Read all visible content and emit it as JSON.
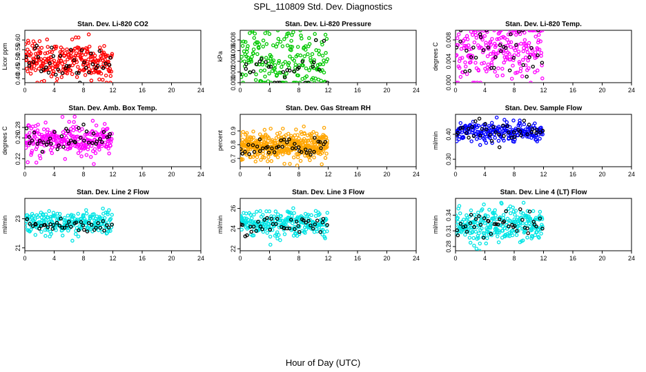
{
  "main_title": "SPL_110809  Std. Dev. Diagnostics",
  "xlabel": "Hour of Day (UTC)",
  "chart_data": [
    {
      "type": "scatter",
      "title": "Stan. Dev. Li-820 CO2",
      "ylabel": "Licor ppm",
      "color": "#ff0000",
      "xlim": [
        0,
        24
      ],
      "xticks": [
        0,
        4,
        8,
        12,
        16,
        20,
        24
      ],
      "ylim": [
        0.38,
        0.65
      ],
      "yticks": [
        "0.40",
        "0.45",
        "0.50",
        "0.55",
        "0.60"
      ],
      "data_x_range": [
        0,
        11.9
      ],
      "series": [
        {
          "name": "points",
          "color": "#ff0000",
          "n": 260,
          "mean": 0.49,
          "sd": 0.05
        },
        {
          "name": "hourly",
          "color": "#000000",
          "n": 40,
          "mean": 0.48,
          "sd": 0.04
        }
      ]
    },
    {
      "type": "scatter",
      "title": "Stan. Dev. Li-820 Pressure",
      "ylabel": "kPa",
      "color": "#00c800",
      "xlim": [
        0,
        24
      ],
      "xticks": [
        0,
        4,
        8,
        12,
        16,
        20,
        24
      ],
      "ylim": [
        0,
        0.0098
      ],
      "yticks": [
        "0.000",
        "0.002",
        "0.004",
        "0.006",
        "0.008"
      ],
      "data_x_range": [
        0,
        11.9
      ],
      "series": [
        {
          "name": "points",
          "color": "#00c800",
          "n": 200,
          "mean": 0.004,
          "sd": 0.003
        },
        {
          "name": "hourly",
          "color": "#000000",
          "n": 30,
          "mean": 0.003,
          "sd": 0.002
        }
      ]
    },
    {
      "type": "scatter",
      "title": "Stan. Dev. Li-820 Temp.",
      "ylabel": "degrees C",
      "color": "#ff00ff",
      "xlim": [
        0,
        24
      ],
      "xticks": [
        0,
        4,
        8,
        12,
        16,
        20,
        24
      ],
      "ylim": [
        0,
        0.0098
      ],
      "yticks": [
        "0.000",
        "0.004",
        "0.008"
      ],
      "data_x_range": [
        0,
        11.9
      ],
      "series": [
        {
          "name": "points",
          "color": "#ff00ff",
          "n": 220,
          "mean": 0.006,
          "sd": 0.003
        },
        {
          "name": "hourly",
          "color": "#000000",
          "n": 35,
          "mean": 0.006,
          "sd": 0.003
        }
      ]
    },
    {
      "type": "scatter",
      "title": "Stan. Dev. Amb. Box Temp.",
      "ylabel": "degrees C",
      "color": "#ff00ff",
      "xlim": [
        0,
        24
      ],
      "xticks": [
        0,
        4,
        8,
        12,
        16,
        20,
        24
      ],
      "ylim": [
        0.205,
        0.305
      ],
      "yticks": [
        "0.22",
        "0.26",
        "0.28"
      ],
      "data_x_range": [
        0,
        11.9
      ],
      "series": [
        {
          "name": "points",
          "color": "#ff00ff",
          "n": 260,
          "mean": 0.255,
          "sd": 0.015
        },
        {
          "name": "hourly",
          "color": "#000000",
          "n": 40,
          "mean": 0.258,
          "sd": 0.012
        }
      ]
    },
    {
      "type": "scatter",
      "title": "Stan. Dev. Gas Stream RH",
      "ylabel": "percent",
      "color": "#ffa500",
      "xlim": [
        0,
        24
      ],
      "xticks": [
        0,
        4,
        8,
        12,
        16,
        20,
        24
      ],
      "ylim": [
        0.64,
        1.02
      ],
      "yticks": [
        "0.7",
        "0.8",
        "0.9"
      ],
      "data_x_range": [
        0,
        11.9
      ],
      "series": [
        {
          "name": "points",
          "color": "#ffa500",
          "n": 420,
          "mean": 0.79,
          "sd": 0.05
        },
        {
          "name": "hourly",
          "color": "#000000",
          "n": 40,
          "mean": 0.78,
          "sd": 0.04
        }
      ]
    },
    {
      "type": "scatter",
      "title": "Stan. Dev. Sample Flow",
      "ylabel": "ml/min",
      "color": "#0000ff",
      "xlim": [
        0,
        24
      ],
      "xticks": [
        0,
        4,
        8,
        12,
        16,
        20,
        24
      ],
      "ylim": [
        0.27,
        0.48
      ],
      "yticks": [
        "0.30",
        "0.40"
      ],
      "data_x_range": [
        0,
        11.9
      ],
      "series": [
        {
          "name": "points",
          "color": "#0000ff",
          "n": 220,
          "mean": 0.41,
          "sd": 0.02
        },
        {
          "name": "hourly",
          "color": "#000000",
          "n": 40,
          "mean": 0.41,
          "sd": 0.02
        }
      ]
    },
    {
      "type": "scatter",
      "title": "Stan. Dev. Line 2 Flow",
      "ylabel": "ml/min",
      "color": "#00e5e5",
      "xlim": [
        0,
        24
      ],
      "xticks": [
        0,
        4,
        8,
        12,
        16,
        20,
        24
      ],
      "ylim": [
        20.8,
        24.4
      ],
      "yticks": [
        "21",
        "23"
      ],
      "data_x_range": [
        0,
        11.9
      ],
      "series": [
        {
          "name": "points",
          "color": "#00e5e5",
          "n": 240,
          "mean": 22.7,
          "sd": 0.4
        },
        {
          "name": "hourly",
          "color": "#000000",
          "n": 40,
          "mean": 22.6,
          "sd": 0.25
        }
      ]
    },
    {
      "type": "scatter",
      "title": "Stan. Dev. Line 3 Flow",
      "ylabel": "ml/min",
      "color": "#00e5e5",
      "xlim": [
        0,
        24
      ],
      "xticks": [
        0,
        4,
        8,
        12,
        16,
        20,
        24
      ],
      "ylim": [
        21.8,
        27.0
      ],
      "yticks": [
        "22",
        "24",
        "26"
      ],
      "data_x_range": [
        0,
        11.9
      ],
      "series": [
        {
          "name": "points",
          "color": "#00e5e5",
          "n": 240,
          "mean": 24.5,
          "sd": 0.6
        },
        {
          "name": "hourly",
          "color": "#000000",
          "n": 40,
          "mean": 24.4,
          "sd": 0.4
        }
      ]
    },
    {
      "type": "scatter",
      "title": "Stan. Dev. Line 4 (LT) Flow",
      "ylabel": "ml/min",
      "color": "#00e5e5",
      "xlim": [
        0,
        24
      ],
      "xticks": [
        0,
        4,
        8,
        12,
        16,
        20,
        24
      ],
      "ylim": [
        0.272,
        0.372
      ],
      "yticks": [
        "0.28",
        "0.31",
        "0.34"
      ],
      "data_x_range": [
        0,
        11.9
      ],
      "series": [
        {
          "name": "points",
          "color": "#00e5e5",
          "n": 260,
          "mean": 0.322,
          "sd": 0.018
        },
        {
          "name": "hourly",
          "color": "#000000",
          "n": 40,
          "mean": 0.322,
          "sd": 0.013
        }
      ]
    }
  ]
}
